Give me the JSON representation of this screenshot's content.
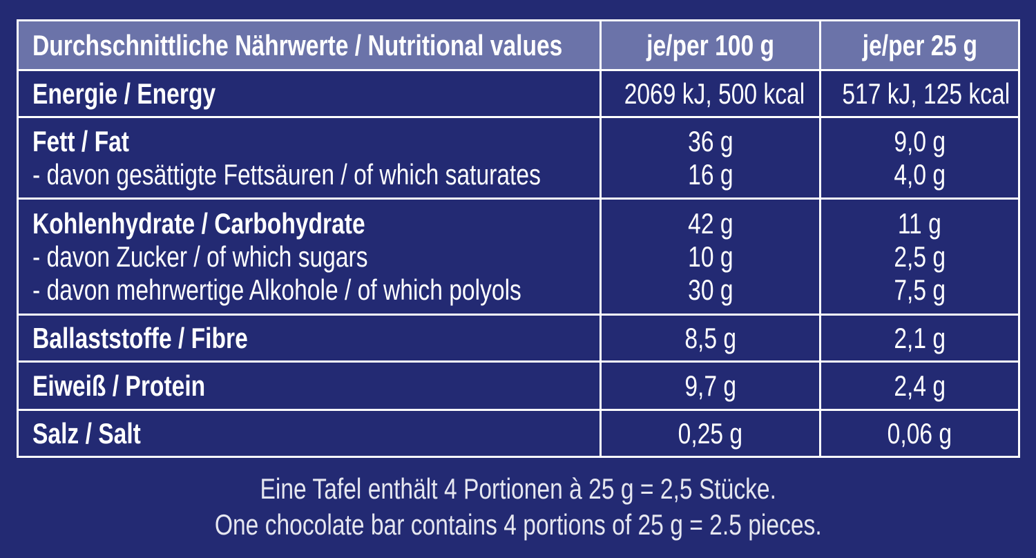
{
  "table": {
    "header": [
      "Durchschnittliche Nährwerte / Nutritional values",
      "je/per 100 g",
      "je/per 25 g"
    ],
    "rows": [
      {
        "label": [
          "Energie / Energy"
        ],
        "per100": [
          "2069 kJ, 500 kcal"
        ],
        "per25": [
          "517 kJ, 125 kcal"
        ]
      },
      {
        "label": [
          "Fett / Fat",
          "- davon gesättigte Fettsäuren / of which saturates"
        ],
        "per100": [
          "36 g",
          "16 g"
        ],
        "per25": [
          "9,0 g",
          "4,0 g"
        ]
      },
      {
        "label": [
          "Kohlenhydrate / Carbohydrate",
          "- davon Zucker / of which sugars",
          "- davon mehrwertige Alkohole / of which polyols"
        ],
        "per100": [
          "42 g",
          "10 g",
          "30 g"
        ],
        "per25": [
          "11 g",
          "2,5 g",
          "7,5 g"
        ]
      },
      {
        "label": [
          "Ballaststoffe / Fibre"
        ],
        "per100": [
          "8,5 g"
        ],
        "per25": [
          "2,1 g"
        ]
      },
      {
        "label": [
          "Eiweiß / Protein"
        ],
        "per100": [
          "9,7 g"
        ],
        "per25": [
          "2,4 g"
        ]
      },
      {
        "label": [
          "Salz / Salt"
        ],
        "per100": [
          "0,25 g"
        ],
        "per25": [
          "0,06 g"
        ]
      }
    ]
  },
  "footer": [
    "Eine Tafel enthält 4 Portionen à 25 g = 2,5 Stücke.",
    "One chocolate bar contains 4 portions of 25 g = 2.5 pieces."
  ]
}
